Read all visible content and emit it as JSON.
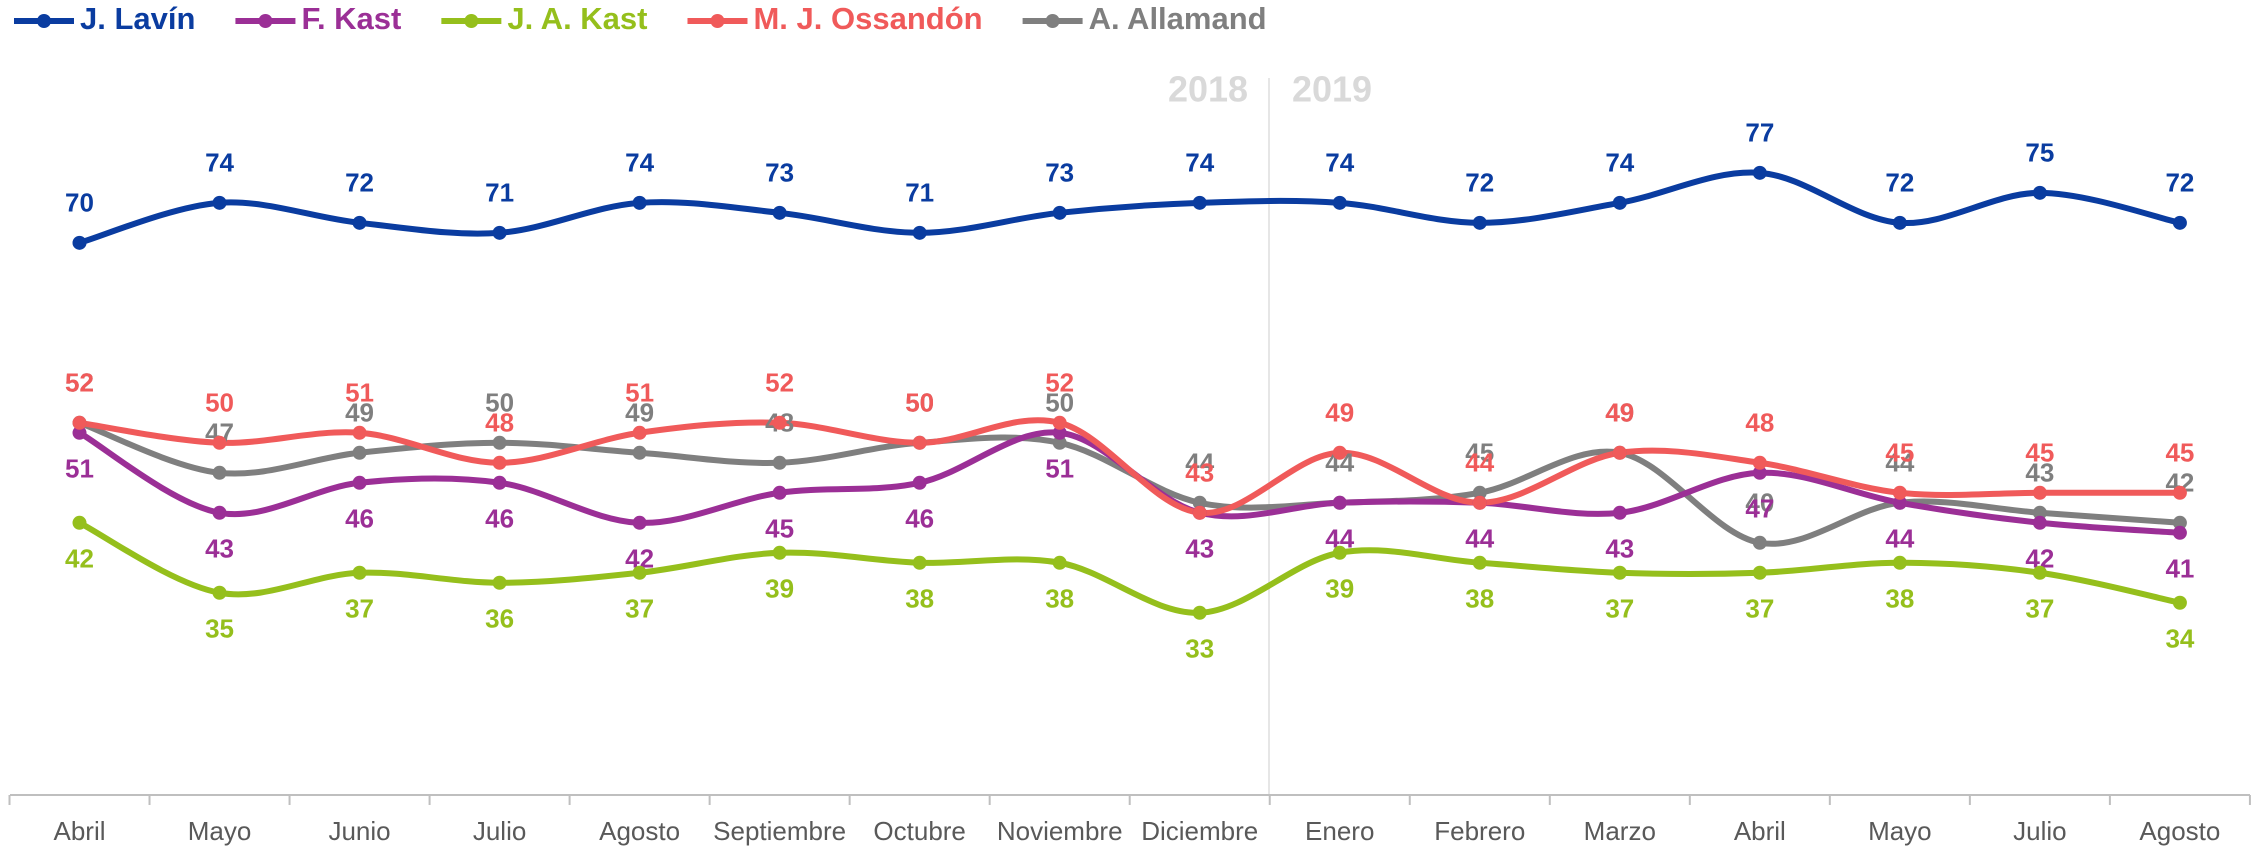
{
  "chart_data": {
    "type": "line",
    "categories": [
      "Abril",
      "Mayo",
      "Junio",
      "Julio",
      "Agosto",
      "Septiembre",
      "Octubre",
      "Noviembre",
      "Diciembre",
      "Enero",
      "Febrero",
      "Marzo",
      "Abril",
      "Mayo",
      "Julio",
      "Agosto"
    ],
    "annotations": [
      "2018",
      "2019"
    ],
    "ylim": [
      15,
      94
    ],
    "legend": "top-left",
    "series": [
      {
        "name": "J. Lavín",
        "color": "#0a3ca0",
        "values": [
          70,
          74,
          72,
          71,
          74,
          73,
          71,
          73,
          74,
          74,
          72,
          74,
          77,
          72,
          75,
          72
        ]
      },
      {
        "name": "F. Kast",
        "color": "#9b2f96",
        "values": [
          51,
          43,
          46,
          46,
          42,
          45,
          46,
          51,
          43,
          44,
          44,
          43,
          47,
          44,
          42,
          41
        ]
      },
      {
        "name": "J. A. Kast",
        "color": "#95bf1c",
        "values": [
          42,
          35,
          37,
          36,
          37,
          39,
          38,
          38,
          33,
          39,
          38,
          37,
          37,
          38,
          37,
          34
        ]
      },
      {
        "name": "M. J. Ossandón",
        "color": "#f05a5a",
        "values": [
          52,
          50,
          51,
          48,
          51,
          52,
          50,
          52,
          43,
          49,
          44,
          49,
          48,
          45,
          45,
          45
        ]
      },
      {
        "name": "A. Allamand",
        "color": "#7f7f7f",
        "values": [
          52,
          47,
          49,
          50,
          49,
          48,
          50,
          50,
          44,
          44,
          45,
          49,
          40,
          44,
          43,
          42
        ]
      }
    ]
  }
}
